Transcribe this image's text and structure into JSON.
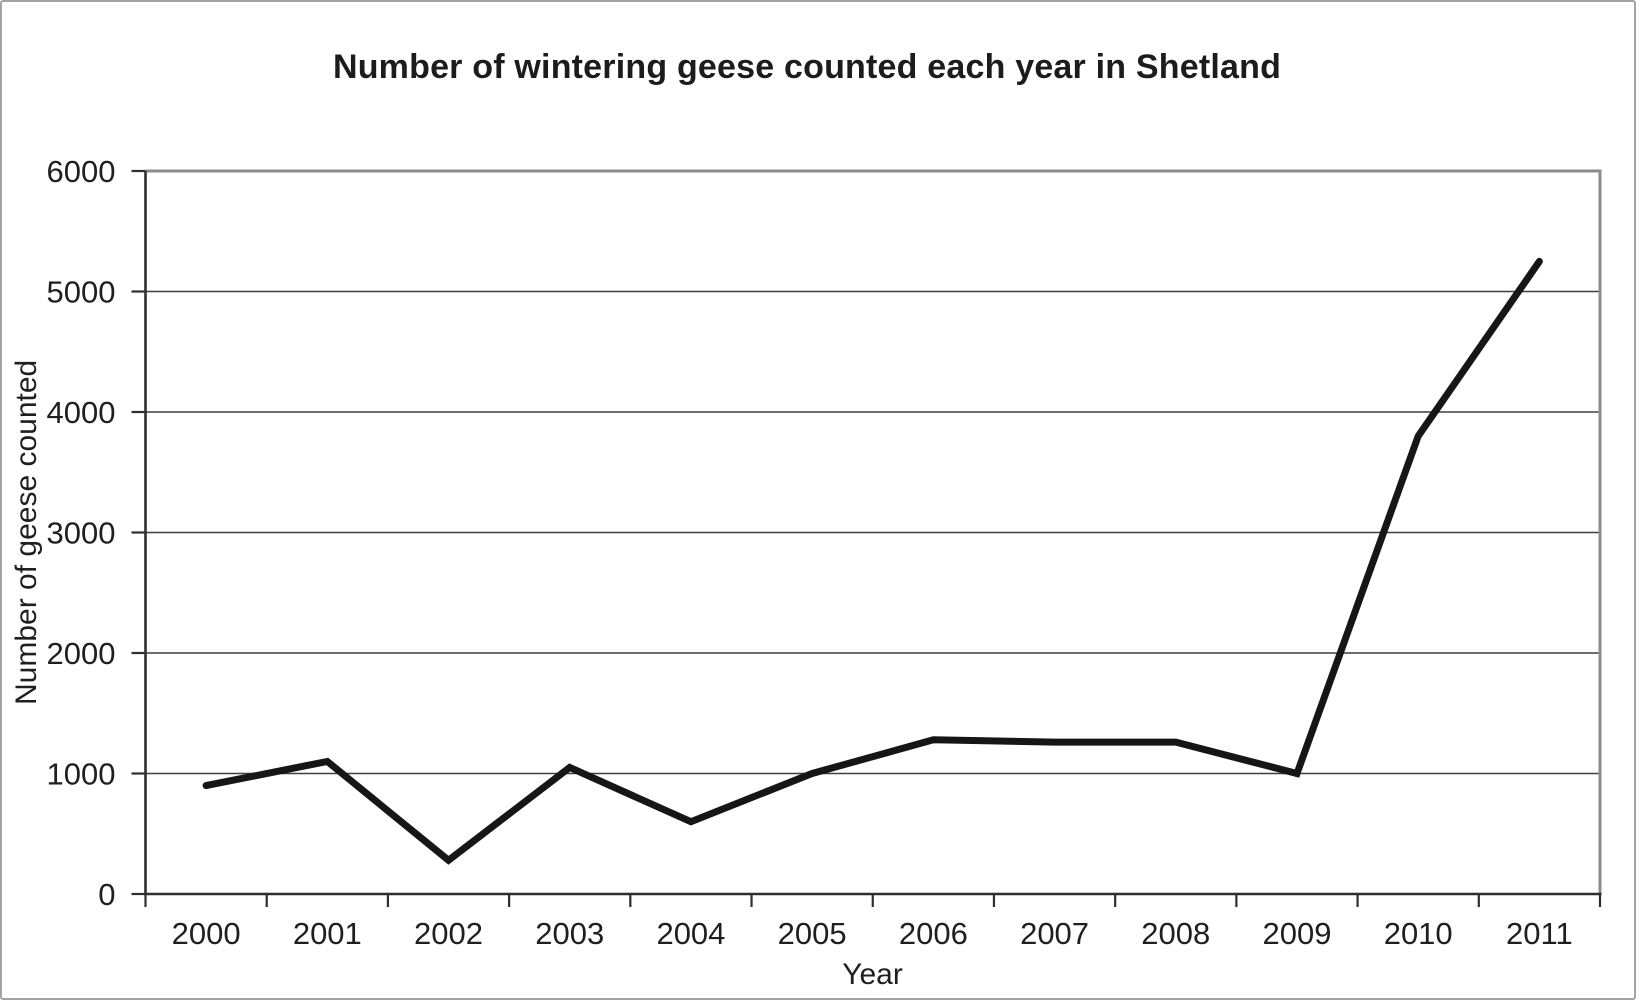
{
  "chart_data": {
    "type": "line",
    "title": "Number of wintering geese counted each year in Shetland",
    "xlabel": "Year",
    "ylabel": "Number of geese counted",
    "categories": [
      "2000",
      "2001",
      "2002",
      "2003",
      "2004",
      "2005",
      "2006",
      "2007",
      "2008",
      "2009",
      "2010",
      "2011"
    ],
    "values": [
      900,
      1100,
      280,
      1050,
      600,
      1000,
      1280,
      1260,
      1260,
      1000,
      3800,
      5250
    ],
    "ylim": [
      0,
      6000
    ],
    "ytick_step": 1000,
    "yticks": [
      "0",
      "1000",
      "2000",
      "3000",
      "4000",
      "5000",
      "6000"
    ],
    "grid": "horizontal",
    "legend": false,
    "colors": {
      "line": "#161616",
      "text": "#1f1f1f",
      "axis": "#2e2e2e",
      "gridline": "#3f3f3f",
      "frame": "#8c8c8c",
      "background": "#ffffff"
    }
  }
}
